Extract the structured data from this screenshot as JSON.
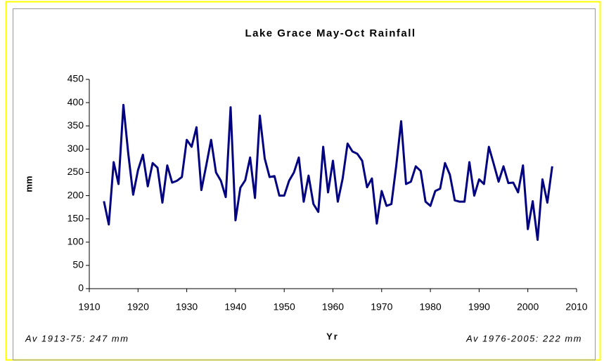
{
  "chart_data": {
    "type": "line",
    "title": "Lake Grace May-Oct Rainfall",
    "x_label": "Yr",
    "y_label": "mm",
    "annotations": [
      "Av 1913-75: 247 mm",
      "Av 1976-2005: 222 mm"
    ],
    "x": [
      1913,
      1914,
      1915,
      1916,
      1917,
      1918,
      1919,
      1920,
      1921,
      1922,
      1923,
      1924,
      1925,
      1926,
      1927,
      1928,
      1929,
      1930,
      1931,
      1932,
      1933,
      1934,
      1935,
      1936,
      1937,
      1938,
      1939,
      1940,
      1941,
      1942,
      1943,
      1944,
      1945,
      1946,
      1947,
      1948,
      1949,
      1950,
      1951,
      1952,
      1953,
      1954,
      1955,
      1956,
      1957,
      1958,
      1959,
      1960,
      1961,
      1962,
      1963,
      1964,
      1965,
      1966,
      1967,
      1968,
      1969,
      1970,
      1971,
      1972,
      1973,
      1974,
      1975,
      1976,
      1977,
      1978,
      1979,
      1980,
      1981,
      1982,
      1983,
      1984,
      1985,
      1986,
      1987,
      1988,
      1989,
      1990,
      1991,
      1992,
      1993,
      1994,
      1995,
      1996,
      1997,
      1998,
      1999,
      2000,
      2001,
      2002,
      2003,
      2004,
      2005
    ],
    "series": [
      {
        "name": "Rainfall",
        "color": "#000080",
        "values": [
          188,
          138,
          272,
          225,
          395,
          290,
          202,
          255,
          288,
          220,
          270,
          260,
          185,
          265,
          228,
          232,
          240,
          320,
          305,
          347,
          212,
          265,
          320,
          250,
          232,
          197,
          390,
          147,
          217,
          233,
          282,
          195,
          372,
          280,
          240,
          242,
          200,
          200,
          232,
          250,
          282,
          187,
          243,
          182,
          165,
          305,
          207,
          275,
          187,
          237,
          312,
          295,
          290,
          275,
          218,
          237,
          140,
          210,
          178,
          182,
          265,
          360,
          225,
          230,
          263,
          253,
          187,
          178,
          210,
          215,
          270,
          245,
          190,
          187,
          187,
          272,
          200,
          235,
          225,
          305,
          268,
          230,
          263,
          227,
          228,
          207,
          265,
          128,
          188,
          105,
          235,
          185,
          263
        ]
      }
    ],
    "xlim": [
      1910,
      2010
    ],
    "xticks": [
      1910,
      1920,
      1930,
      1940,
      1950,
      1960,
      1970,
      1980,
      1990,
      2000,
      2010
    ],
    "ylim": [
      0,
      450
    ],
    "yticks": [
      0,
      50,
      100,
      150,
      200,
      250,
      300,
      350,
      400,
      450
    ]
  }
}
